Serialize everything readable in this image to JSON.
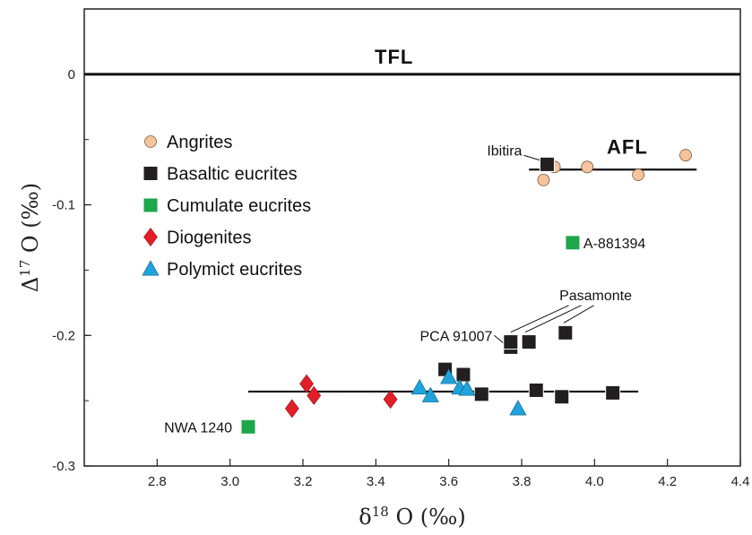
{
  "chart_data": {
    "type": "scatter",
    "xlabel": "δ18 O (‰)",
    "ylabel": "Δ17 O (‰)",
    "xlim": [
      2.6,
      4.4
    ],
    "ylim": [
      -0.3,
      0.05
    ],
    "x_ticks": [
      2.8,
      3.0,
      3.2,
      3.4,
      3.6,
      3.8,
      4.0,
      4.2,
      4.4
    ],
    "x_tick_labels": [
      "2.8",
      "3.0",
      "3.2",
      "3.4",
      "3.6",
      "3.8",
      "4.0",
      "4.2",
      "4.4"
    ],
    "y_ticks": [
      0,
      -0.1,
      -0.2,
      -0.3
    ],
    "y_tick_labels": [
      "0",
      "-0.1",
      "-0.2",
      "-0.3"
    ],
    "legend_position": "upper-left",
    "series": [
      {
        "name": "Angrites",
        "marker": "circle",
        "color": "#F6C49A",
        "points": [
          [
            3.86,
            -0.081
          ],
          [
            3.89,
            -0.071
          ],
          [
            3.98,
            -0.071
          ],
          [
            4.12,
            -0.077
          ],
          [
            4.25,
            -0.062
          ]
        ]
      },
      {
        "name": "Basaltic eucrites",
        "marker": "square",
        "color": "#231F20",
        "points": [
          [
            3.87,
            -0.069
          ],
          [
            3.77,
            -0.209
          ],
          [
            3.77,
            -0.205
          ],
          [
            3.82,
            -0.205
          ],
          [
            3.92,
            -0.198
          ],
          [
            3.59,
            -0.226
          ],
          [
            3.64,
            -0.23
          ],
          [
            3.69,
            -0.245
          ],
          [
            3.84,
            -0.242
          ],
          [
            3.91,
            -0.247
          ],
          [
            4.05,
            -0.244
          ]
        ]
      },
      {
        "name": "Cumulate eucrites",
        "marker": "square",
        "color": "#1DA64A",
        "points": [
          [
            3.94,
            -0.129
          ],
          [
            3.05,
            -0.27
          ]
        ]
      },
      {
        "name": "Diogenites",
        "marker": "diamond",
        "color": "#E31E26",
        "points": [
          [
            3.21,
            -0.237
          ],
          [
            3.23,
            -0.246
          ],
          [
            3.17,
            -0.256
          ],
          [
            3.44,
            -0.249
          ]
        ]
      },
      {
        "name": "Polymict eucrites",
        "marker": "triangle",
        "color": "#1EA3DC",
        "points": [
          [
            3.52,
            -0.24
          ],
          [
            3.55,
            -0.246
          ],
          [
            3.6,
            -0.232
          ],
          [
            3.63,
            -0.24
          ],
          [
            3.65,
            -0.241
          ],
          [
            3.79,
            -0.256
          ]
        ]
      }
    ],
    "reference_lines": [
      {
        "label": "TFL",
        "y": 0,
        "x": [
          2.6,
          4.4
        ]
      },
      {
        "label": "AFL",
        "y": -0.073,
        "x": [
          3.82,
          4.28
        ]
      },
      {
        "label": "",
        "y": -0.243,
        "x": [
          3.05,
          4.12
        ]
      }
    ],
    "annotations": [
      {
        "text": "Ibitira",
        "x": 3.87,
        "y": -0.069
      },
      {
        "text": "A-881394",
        "x": 3.94,
        "y": -0.129
      },
      {
        "text": "Pasamonte",
        "x": 3.87,
        "y": -0.198
      },
      {
        "text": "PCA 91007",
        "x": 3.77,
        "y": -0.205
      },
      {
        "text": "NWA 1240",
        "x": 3.05,
        "y": -0.27
      }
    ]
  }
}
